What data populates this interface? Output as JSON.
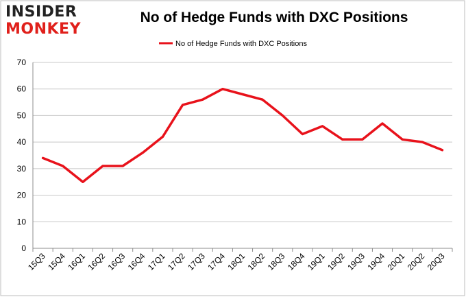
{
  "logo": {
    "line1": "INSIDER",
    "line2": "MONKEY"
  },
  "colors": {
    "series": "#e8121b",
    "grid": "#c8c8c8",
    "border": "#bdbdbd",
    "logo_dark": "#222222",
    "logo_red": "#e0201b"
  },
  "chart_data": {
    "type": "line",
    "title": "No of Hedge Funds with DXC Positions",
    "xlabel": "",
    "ylabel": "",
    "ylim": [
      0,
      70
    ],
    "yticks": [
      0,
      10,
      20,
      30,
      40,
      50,
      60,
      70
    ],
    "grid": true,
    "legend_position": "top-center",
    "categories": [
      "15Q3",
      "15Q4",
      "16Q1",
      "16Q2",
      "16Q3",
      "16Q4",
      "17Q1",
      "17Q2",
      "17Q3",
      "17Q4",
      "18Q1",
      "18Q2",
      "18Q3",
      "18Q4",
      "19Q1",
      "19Q2",
      "19Q3",
      "19Q4",
      "20Q1",
      "20Q2",
      "20Q3"
    ],
    "series": [
      {
        "name": "No of Hedge Funds with DXC Positions",
        "values": [
          34,
          31,
          25,
          31,
          31,
          36,
          42,
          54,
          56,
          60,
          58,
          56,
          50,
          43,
          46,
          41,
          41,
          47,
          41,
          40,
          37
        ]
      }
    ]
  }
}
